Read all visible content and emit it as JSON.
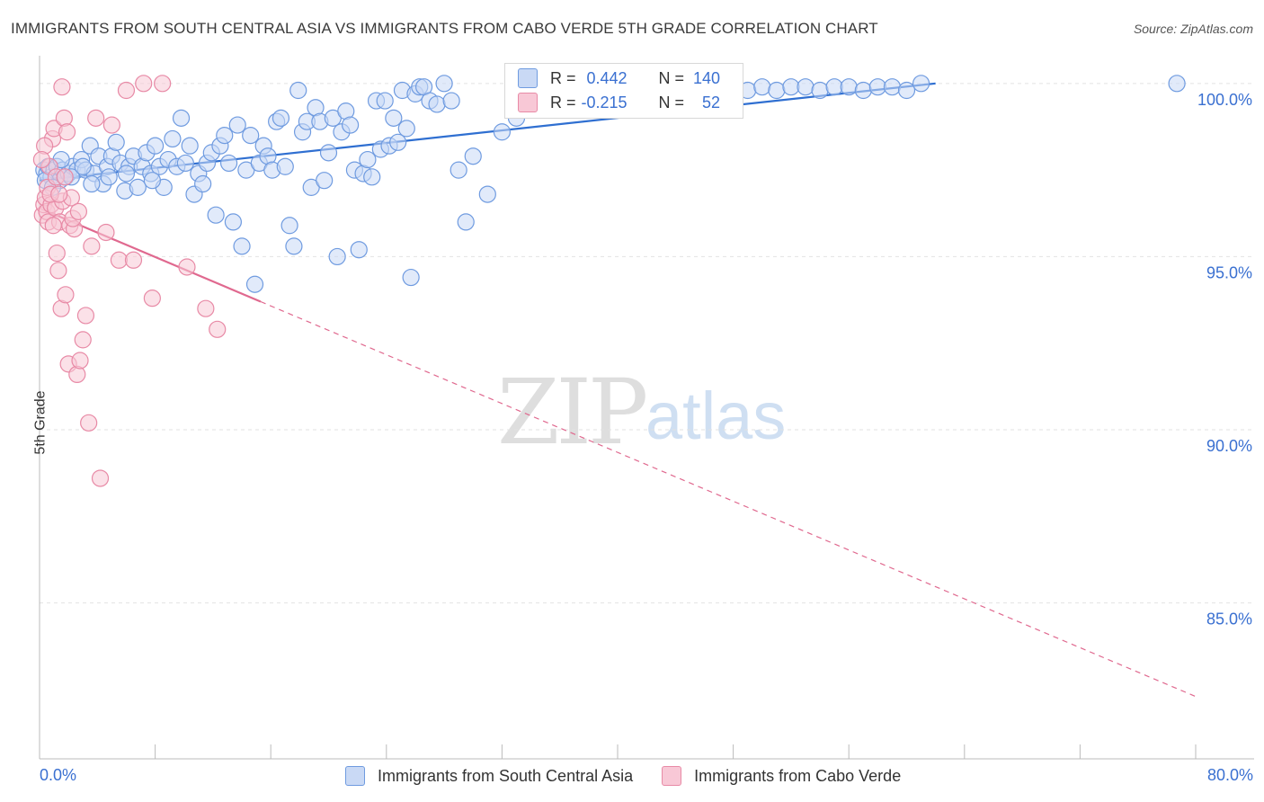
{
  "title": "IMMIGRANTS FROM SOUTH CENTRAL ASIA VS IMMIGRANTS FROM CABO VERDE 5TH GRADE CORRELATION CHART",
  "source": "Source: ZipAtlas.com",
  "watermark": {
    "zip": "ZIP",
    "atlas": "atlas"
  },
  "legend": {
    "r_label": "R =",
    "n_label": "N =",
    "blue": {
      "r": "0.442",
      "n": "140"
    },
    "pink": {
      "r": "-0.215",
      "n": "52"
    }
  },
  "colors": {
    "blue": "#6f9be0",
    "blue_fill": "#c9d9f5",
    "blue_line": "#2f6fd1",
    "pink": "#e88aa6",
    "pink_fill": "#f8c8d6",
    "pink_line": "#e0698f",
    "axis_text": "#3a70d1"
  },
  "chart_data": {
    "type": "scatter",
    "title": "IMMIGRANTS FROM SOUTH CENTRAL ASIA VS IMMIGRANTS FROM CABO VERDE 5TH GRADE CORRELATION CHART",
    "xlabel": "",
    "ylabel": "5th Grade",
    "xlim": [
      0,
      80
    ],
    "ylim": [
      80.5,
      100.8
    ],
    "x_tick_labels": [
      "0.0%",
      "80.0%"
    ],
    "y_ticks": [
      85,
      90,
      95,
      100
    ],
    "y_tick_labels": [
      "85.0%",
      "90.0%",
      "95.0%",
      "100.0%"
    ],
    "grid": true,
    "series": [
      {
        "name": "Immigrants from South Central Asia",
        "color": "blue",
        "trend": {
          "x": [
            0,
            62
          ],
          "y": [
            97.2,
            100.0
          ],
          "dashed_to": null
        },
        "points": [
          [
            0.3,
            97.5
          ],
          [
            0.5,
            97.4
          ],
          [
            0.6,
            97.6
          ],
          [
            0.8,
            97.3
          ],
          [
            1.0,
            97.5
          ],
          [
            1.2,
            97.6
          ],
          [
            1.4,
            97.2
          ],
          [
            1.6,
            97.5
          ],
          [
            1.8,
            97.3
          ],
          [
            2.0,
            97.4
          ],
          [
            2.3,
            97.6
          ],
          [
            2.6,
            97.5
          ],
          [
            2.9,
            97.8
          ],
          [
            3.2,
            97.5
          ],
          [
            3.5,
            98.2
          ],
          [
            3.8,
            97.4
          ],
          [
            4.1,
            97.9
          ],
          [
            4.4,
            97.1
          ],
          [
            4.7,
            97.6
          ],
          [
            5.0,
            97.9
          ],
          [
            5.3,
            98.3
          ],
          [
            5.6,
            97.7
          ],
          [
            5.9,
            96.9
          ],
          [
            6.2,
            97.6
          ],
          [
            6.5,
            97.9
          ],
          [
            6.8,
            97.0
          ],
          [
            7.1,
            97.6
          ],
          [
            7.4,
            98.0
          ],
          [
            7.7,
            97.4
          ],
          [
            8.0,
            98.2
          ],
          [
            8.3,
            97.6
          ],
          [
            8.6,
            97.0
          ],
          [
            8.9,
            97.8
          ],
          [
            9.2,
            98.4
          ],
          [
            9.5,
            97.6
          ],
          [
            9.8,
            99.0
          ],
          [
            10.1,
            97.7
          ],
          [
            10.4,
            98.2
          ],
          [
            10.7,
            96.8
          ],
          [
            11.0,
            97.4
          ],
          [
            11.3,
            97.1
          ],
          [
            11.6,
            97.7
          ],
          [
            11.9,
            98.0
          ],
          [
            12.2,
            96.2
          ],
          [
            12.5,
            98.2
          ],
          [
            12.8,
            98.5
          ],
          [
            13.1,
            97.7
          ],
          [
            13.4,
            96.0
          ],
          [
            13.7,
            98.8
          ],
          [
            14.0,
            95.3
          ],
          [
            14.3,
            97.5
          ],
          [
            14.6,
            98.5
          ],
          [
            14.9,
            94.2
          ],
          [
            15.2,
            97.7
          ],
          [
            15.5,
            98.2
          ],
          [
            15.8,
            97.9
          ],
          [
            16.1,
            97.5
          ],
          [
            16.4,
            98.9
          ],
          [
            16.7,
            99.0
          ],
          [
            17.0,
            97.6
          ],
          [
            17.3,
            95.9
          ],
          [
            17.6,
            95.3
          ],
          [
            17.9,
            99.8
          ],
          [
            18.2,
            98.6
          ],
          [
            18.5,
            98.9
          ],
          [
            18.8,
            97.0
          ],
          [
            19.1,
            99.3
          ],
          [
            19.4,
            98.9
          ],
          [
            19.7,
            97.2
          ],
          [
            20.0,
            98.0
          ],
          [
            20.3,
            99.0
          ],
          [
            20.6,
            95.0
          ],
          [
            20.9,
            98.6
          ],
          [
            21.2,
            99.2
          ],
          [
            21.5,
            98.8
          ],
          [
            21.8,
            97.5
          ],
          [
            22.1,
            95.2
          ],
          [
            22.4,
            97.4
          ],
          [
            22.7,
            97.8
          ],
          [
            23.0,
            97.3
          ],
          [
            23.3,
            99.5
          ],
          [
            23.6,
            98.1
          ],
          [
            23.9,
            99.5
          ],
          [
            24.2,
            98.2
          ],
          [
            24.5,
            99.0
          ],
          [
            24.8,
            98.3
          ],
          [
            25.1,
            99.8
          ],
          [
            25.4,
            98.7
          ],
          [
            25.7,
            94.4
          ],
          [
            26.0,
            99.7
          ],
          [
            26.3,
            99.9
          ],
          [
            26.6,
            99.9
          ],
          [
            27.0,
            99.5
          ],
          [
            27.5,
            99.4
          ],
          [
            28.0,
            100.0
          ],
          [
            28.5,
            99.5
          ],
          [
            29.0,
            97.5
          ],
          [
            29.5,
            96.0
          ],
          [
            30.0,
            97.9
          ],
          [
            31.0,
            96.8
          ],
          [
            32.0,
            98.6
          ],
          [
            33.0,
            99.0
          ],
          [
            34.0,
            99.7
          ],
          [
            35.0,
            100.0
          ],
          [
            36.0,
            99.9
          ],
          [
            37.0,
            100.0
          ],
          [
            38.0,
            99.8
          ],
          [
            39.0,
            99.9
          ],
          [
            40.0,
            99.6
          ],
          [
            41.0,
            99.3
          ],
          [
            42.0,
            99.4
          ],
          [
            43.0,
            99.8
          ],
          [
            44.0,
            99.7
          ],
          [
            45.0,
            99.6
          ],
          [
            46.0,
            99.9
          ],
          [
            47.0,
            99.9
          ],
          [
            48.0,
            99.7
          ],
          [
            49.0,
            99.8
          ],
          [
            50.0,
            99.9
          ],
          [
            51.0,
            99.8
          ],
          [
            52.0,
            99.9
          ],
          [
            53.0,
            99.9
          ],
          [
            54.0,
            99.8
          ],
          [
            55.0,
            99.9
          ],
          [
            56.0,
            99.9
          ],
          [
            57.0,
            99.8
          ],
          [
            58.0,
            99.9
          ],
          [
            59.0,
            99.9
          ],
          [
            60.0,
            99.8
          ],
          [
            61.0,
            100.0
          ],
          [
            78.7,
            100.0
          ],
          [
            0.4,
            97.2
          ],
          [
            0.9,
            97.0
          ],
          [
            1.5,
            97.8
          ],
          [
            2.2,
            97.3
          ],
          [
            3.0,
            97.6
          ],
          [
            3.6,
            97.1
          ],
          [
            4.8,
            97.3
          ],
          [
            6.0,
            97.4
          ],
          [
            7.8,
            97.2
          ]
        ]
      },
      {
        "name": "Immigrants from Cabo Verde",
        "color": "pink",
        "trend": {
          "x": [
            0,
            15.3
          ],
          "y": [
            96.4,
            93.7
          ],
          "dashed_to": [
            80,
            82.3
          ]
        },
        "points": [
          [
            0.2,
            96.2
          ],
          [
            0.3,
            96.5
          ],
          [
            0.4,
            96.7
          ],
          [
            0.5,
            96.3
          ],
          [
            0.6,
            96.0
          ],
          [
            0.7,
            97.6
          ],
          [
            0.8,
            96.5
          ],
          [
            0.9,
            98.4
          ],
          [
            1.0,
            98.7
          ],
          [
            1.1,
            96.4
          ],
          [
            1.2,
            95.1
          ],
          [
            1.3,
            94.6
          ],
          [
            1.4,
            96.0
          ],
          [
            1.5,
            93.5
          ],
          [
            1.6,
            96.6
          ],
          [
            1.7,
            99.0
          ],
          [
            1.8,
            93.9
          ],
          [
            1.9,
            98.6
          ],
          [
            2.0,
            91.9
          ],
          [
            2.1,
            95.9
          ],
          [
            2.2,
            96.7
          ],
          [
            2.4,
            95.8
          ],
          [
            2.6,
            91.6
          ],
          [
            2.8,
            92.0
          ],
          [
            3.0,
            92.6
          ],
          [
            3.2,
            93.3
          ],
          [
            3.4,
            90.2
          ],
          [
            3.6,
            95.3
          ],
          [
            3.9,
            99.0
          ],
          [
            4.2,
            88.6
          ],
          [
            4.6,
            95.7
          ],
          [
            5.0,
            98.8
          ],
          [
            5.5,
            94.9
          ],
          [
            6.0,
            99.8
          ],
          [
            6.5,
            94.9
          ],
          [
            7.2,
            100.0
          ],
          [
            7.8,
            93.8
          ],
          [
            8.5,
            100.0
          ],
          [
            10.2,
            94.7
          ],
          [
            11.5,
            93.5
          ],
          [
            12.3,
            92.9
          ],
          [
            0.35,
            98.2
          ],
          [
            0.55,
            97.0
          ],
          [
            0.75,
            96.8
          ],
          [
            0.95,
            95.9
          ],
          [
            1.15,
            97.3
          ],
          [
            1.35,
            96.8
          ],
          [
            1.55,
            99.9
          ],
          [
            1.75,
            97.3
          ],
          [
            2.3,
            96.1
          ],
          [
            2.7,
            96.3
          ],
          [
            0.15,
            97.8
          ]
        ]
      }
    ]
  }
}
